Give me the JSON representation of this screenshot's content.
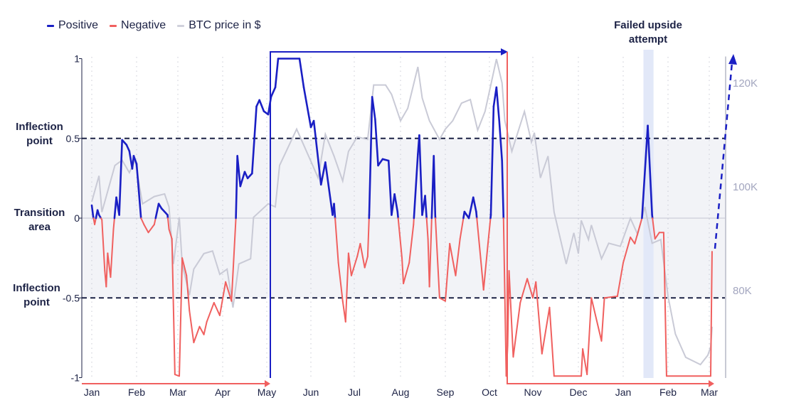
{
  "legend": [
    {
      "label": "Positive",
      "color": "#1a1fc4"
    },
    {
      "label": "Negative",
      "color": "#f0605f"
    },
    {
      "label": "BTC price in $",
      "color": "#c9cad6"
    }
  ],
  "annotations": {
    "inflection_top": "Inflection point",
    "transition": "Transition area",
    "inflection_bottom": "Inflection point",
    "failed": "Failed upside attempt"
  },
  "chart_data": {
    "type": "line",
    "y_left": {
      "ticks": [
        "1",
        "0.5",
        "0",
        "-0.5",
        "-1"
      ],
      "range": [
        -1,
        1
      ]
    },
    "y_right": {
      "ticks": [
        "120K",
        "100K",
        "80K"
      ],
      "range": [
        63,
        125
      ],
      "unit": "K $"
    },
    "x_ticks": [
      "Jan",
      "Feb",
      "Mar",
      "Apr",
      "May",
      "Jun",
      "Jul",
      "Aug",
      "Sep",
      "Oct",
      "Nov",
      "Dec",
      "Jan",
      "Feb",
      "Mar"
    ],
    "x_range": [
      "2025-01-01",
      "2026-03-03"
    ],
    "grid": "vertical dotted per month",
    "transition_band": [
      -0.5,
      0.5
    ],
    "inflection_lines": [
      0.5,
      -0.5
    ],
    "failed_upside_window": [
      "2026-01-15",
      "2026-01-22"
    ],
    "indicator": [
      [
        "2025-01-01",
        0.08
      ],
      [
        "2025-01-02",
        0.01
      ],
      [
        "2025-01-03",
        -0.04
      ],
      [
        "2025-01-05",
        0.05
      ],
      [
        "2025-01-06",
        0.02
      ],
      [
        "2025-01-08",
        -0.01
      ],
      [
        "2025-01-10",
        -0.33
      ],
      [
        "2025-01-11",
        -0.43
      ],
      [
        "2025-01-12",
        -0.22
      ],
      [
        "2025-01-14",
        -0.37
      ],
      [
        "2025-01-16",
        -0.07
      ],
      [
        "2025-01-18",
        0.13
      ],
      [
        "2025-01-20",
        0.02
      ],
      [
        "2025-01-22",
        0.49
      ],
      [
        "2025-01-25",
        0.46
      ],
      [
        "2025-01-27",
        0.42
      ],
      [
        "2025-01-29",
        0.31
      ],
      [
        "2025-01-30",
        0.39
      ],
      [
        "2025-02-01",
        0.34
      ],
      [
        "2025-02-04",
        0.0
      ],
      [
        "2025-02-06",
        -0.04
      ],
      [
        "2025-02-09",
        -0.09
      ],
      [
        "2025-02-13",
        -0.04
      ],
      [
        "2025-02-16",
        0.09
      ],
      [
        "2025-02-18",
        0.06
      ],
      [
        "2025-02-22",
        0.02
      ],
      [
        "2025-02-23",
        -0.07
      ],
      [
        "2025-02-25",
        -0.13
      ],
      [
        "2025-02-27",
        -0.98
      ],
      [
        "2025-03-02",
        -0.99
      ],
      [
        "2025-03-04",
        -0.25
      ],
      [
        "2025-03-07",
        -0.36
      ],
      [
        "2025-03-09",
        -0.58
      ],
      [
        "2025-03-12",
        -0.78
      ],
      [
        "2025-03-16",
        -0.68
      ],
      [
        "2025-03-19",
        -0.73
      ],
      [
        "2025-03-21",
        -0.65
      ],
      [
        "2025-03-26",
        -0.53
      ],
      [
        "2025-03-30",
        -0.61
      ],
      [
        "2025-04-03",
        -0.4
      ],
      [
        "2025-04-07",
        -0.52
      ],
      [
        "2025-04-10",
        0.0
      ],
      [
        "2025-04-11",
        0.39
      ],
      [
        "2025-04-13",
        0.2
      ],
      [
        "2025-04-16",
        0.29
      ],
      [
        "2025-04-18",
        0.25
      ],
      [
        "2025-04-21",
        0.28
      ],
      [
        "2025-04-24",
        0.7
      ],
      [
        "2025-04-26",
        0.74
      ],
      [
        "2025-04-29",
        0.67
      ],
      [
        "2025-05-02",
        0.65
      ],
      [
        "2025-05-04",
        0.76
      ],
      [
        "2025-05-07",
        0.82
      ],
      [
        "2025-05-09",
        1.0
      ],
      [
        "2025-05-24",
        1.0
      ],
      [
        "2025-05-27",
        0.82
      ],
      [
        "2025-06-01",
        0.57
      ],
      [
        "2025-06-03",
        0.61
      ],
      [
        "2025-06-08",
        0.21
      ],
      [
        "2025-06-11",
        0.35
      ],
      [
        "2025-06-16",
        0.02
      ],
      [
        "2025-06-17",
        0.09
      ],
      [
        "2025-06-18",
        -0.03
      ],
      [
        "2025-06-20",
        -0.28
      ],
      [
        "2025-06-23",
        -0.52
      ],
      [
        "2025-06-25",
        -0.65
      ],
      [
        "2025-06-27",
        -0.22
      ],
      [
        "2025-06-29",
        -0.36
      ],
      [
        "2025-07-03",
        -0.24
      ],
      [
        "2025-07-05",
        -0.16
      ],
      [
        "2025-07-08",
        -0.31
      ],
      [
        "2025-07-10",
        -0.24
      ],
      [
        "2025-07-11",
        0.02
      ],
      [
        "2025-07-13",
        0.76
      ],
      [
        "2025-07-15",
        0.62
      ],
      [
        "2025-07-17",
        0.33
      ],
      [
        "2025-07-20",
        0.37
      ],
      [
        "2025-07-24",
        0.36
      ],
      [
        "2025-07-26",
        0.02
      ],
      [
        "2025-07-28",
        0.15
      ],
      [
        "2025-07-30",
        0.04
      ],
      [
        "2025-08-02",
        -0.25
      ],
      [
        "2025-08-03",
        -0.41
      ],
      [
        "2025-08-07",
        -0.28
      ],
      [
        "2025-08-10",
        -0.04
      ],
      [
        "2025-08-13",
        0.4
      ],
      [
        "2025-08-14",
        0.52
      ],
      [
        "2025-08-16",
        0.02
      ],
      [
        "2025-08-18",
        0.14
      ],
      [
        "2025-08-20",
        -0.13
      ],
      [
        "2025-08-21",
        -0.43
      ],
      [
        "2025-08-24",
        0.39
      ],
      [
        "2025-08-25",
        0.02
      ],
      [
        "2025-08-28",
        -0.5
      ],
      [
        "2025-09-01",
        -0.52
      ],
      [
        "2025-09-04",
        -0.16
      ],
      [
        "2025-09-08",
        -0.36
      ],
      [
        "2025-09-11",
        -0.13
      ],
      [
        "2025-09-14",
        0.04
      ],
      [
        "2025-09-17",
        0.0
      ],
      [
        "2025-09-20",
        0.13
      ],
      [
        "2025-09-22",
        0.04
      ],
      [
        "2025-09-25",
        -0.25
      ],
      [
        "2025-09-27",
        -0.45
      ],
      [
        "2025-09-30",
        -0.16
      ],
      [
        "2025-10-02",
        0.02
      ],
      [
        "2025-10-04",
        0.7
      ],
      [
        "2025-10-06",
        0.82
      ],
      [
        "2025-10-08",
        0.61
      ],
      [
        "2025-10-10",
        0.36
      ],
      [
        "2025-10-11",
        0.02
      ],
      [
        "2025-10-13",
        -0.99
      ],
      [
        "2025-10-14",
        -0.8
      ],
      [
        "2025-10-15",
        -0.33
      ],
      [
        "2025-10-18",
        -0.87
      ],
      [
        "2025-10-23",
        -0.53
      ],
      [
        "2025-10-28",
        -0.38
      ],
      [
        "2025-11-01",
        -0.5
      ],
      [
        "2025-11-03",
        -0.4
      ],
      [
        "2025-11-07",
        -0.85
      ],
      [
        "2025-11-12",
        -0.56
      ],
      [
        "2025-11-15",
        -0.99
      ],
      [
        "2025-12-03",
        -0.99
      ],
      [
        "2025-12-04",
        -0.82
      ],
      [
        "2025-12-07",
        -0.98
      ],
      [
        "2025-12-10",
        -0.5
      ],
      [
        "2025-12-17",
        -0.77
      ],
      [
        "2025-12-19",
        -0.5
      ],
      [
        "2025-12-28",
        -0.49
      ],
      [
        "2026-01-01",
        -0.28
      ],
      [
        "2026-01-06",
        -0.12
      ],
      [
        "2026-01-09",
        -0.16
      ],
      [
        "2026-01-14",
        0.0
      ],
      [
        "2026-01-18",
        0.58
      ],
      [
        "2026-01-21",
        0.02
      ],
      [
        "2026-01-23",
        -0.13
      ],
      [
        "2026-01-26",
        -0.09
      ],
      [
        "2026-01-29",
        -0.09
      ],
      [
        "2026-01-31",
        -0.99
      ],
      [
        "2026-03-02",
        -0.99
      ],
      [
        "2026-03-03",
        -0.21
      ]
    ],
    "btc_price_k": [
      [
        "2025-01-01",
        97
      ],
      [
        "2025-01-06",
        102
      ],
      [
        "2025-01-08",
        95
      ],
      [
        "2025-01-17",
        104
      ],
      [
        "2025-01-22",
        105
      ],
      [
        "2025-01-27",
        102.6
      ],
      [
        "2025-01-31",
        105
      ],
      [
        "2025-02-05",
        96.6
      ],
      [
        "2025-02-13",
        98
      ],
      [
        "2025-02-20",
        98.5
      ],
      [
        "2025-02-23",
        96
      ],
      [
        "2025-02-26",
        85
      ],
      [
        "2025-03-02",
        94
      ],
      [
        "2025-03-04",
        85
      ],
      [
        "2025-03-09",
        79
      ],
      [
        "2025-03-12",
        84
      ],
      [
        "2025-03-19",
        87
      ],
      [
        "2025-03-25",
        87.5
      ],
      [
        "2025-03-30",
        83
      ],
      [
        "2025-04-04",
        84
      ],
      [
        "2025-04-08",
        76.6
      ],
      [
        "2025-04-12",
        85
      ],
      [
        "2025-04-20",
        86
      ],
      [
        "2025-04-22",
        94
      ],
      [
        "2025-05-02",
        96.6
      ],
      [
        "2025-05-07",
        96
      ],
      [
        "2025-05-10",
        104
      ],
      [
        "2025-05-22",
        111
      ],
      [
        "2025-06-01",
        104.8
      ],
      [
        "2025-06-06",
        101.6
      ],
      [
        "2025-06-11",
        110
      ],
      [
        "2025-06-17",
        105.8
      ],
      [
        "2025-06-23",
        101
      ],
      [
        "2025-06-27",
        106.7
      ],
      [
        "2025-07-03",
        109.5
      ],
      [
        "2025-07-10",
        109
      ],
      [
        "2025-07-14",
        119.5
      ],
      [
        "2025-07-22",
        119.5
      ],
      [
        "2025-07-26",
        117.7
      ],
      [
        "2025-08-01",
        112.6
      ],
      [
        "2025-08-06",
        115
      ],
      [
        "2025-08-13",
        123
      ],
      [
        "2025-08-16",
        117
      ],
      [
        "2025-08-21",
        112.6
      ],
      [
        "2025-08-28",
        109
      ],
      [
        "2025-09-01",
        111
      ],
      [
        "2025-09-06",
        112.6
      ],
      [
        "2025-09-12",
        116
      ],
      [
        "2025-09-18",
        116.7
      ],
      [
        "2025-09-23",
        110.8
      ],
      [
        "2025-09-28",
        114.4
      ],
      [
        "2025-10-06",
        124.5
      ],
      [
        "2025-10-10",
        119.9
      ],
      [
        "2025-10-12",
        112.6
      ],
      [
        "2025-10-17",
        106.7
      ],
      [
        "2025-10-26",
        114.4
      ],
      [
        "2025-10-31",
        108.5
      ],
      [
        "2025-11-02",
        110.3
      ],
      [
        "2025-11-06",
        101.6
      ],
      [
        "2025-11-11",
        105.8
      ],
      [
        "2025-11-15",
        95
      ],
      [
        "2025-11-23",
        85
      ],
      [
        "2025-11-28",
        91
      ],
      [
        "2025-12-01",
        87
      ],
      [
        "2025-12-03",
        93.4
      ],
      [
        "2025-12-08",
        89.7
      ],
      [
        "2025-12-10",
        92.5
      ],
      [
        "2025-12-17",
        86
      ],
      [
        "2025-12-22",
        89
      ],
      [
        "2025-12-30",
        88.4
      ],
      [
        "2026-01-06",
        93.8
      ],
      [
        "2026-01-11",
        90.7
      ],
      [
        "2026-01-16",
        96
      ],
      [
        "2026-01-21",
        89
      ],
      [
        "2026-01-27",
        89.7
      ],
      [
        "2026-02-01",
        78.8
      ],
      [
        "2026-02-06",
        71.5
      ],
      [
        "2026-02-13",
        67
      ],
      [
        "2026-02-23",
        65.6
      ],
      [
        "2026-02-28",
        67.4
      ],
      [
        "2026-03-02",
        69
      ],
      [
        "2026-03-03",
        72.9
      ]
    ]
  }
}
